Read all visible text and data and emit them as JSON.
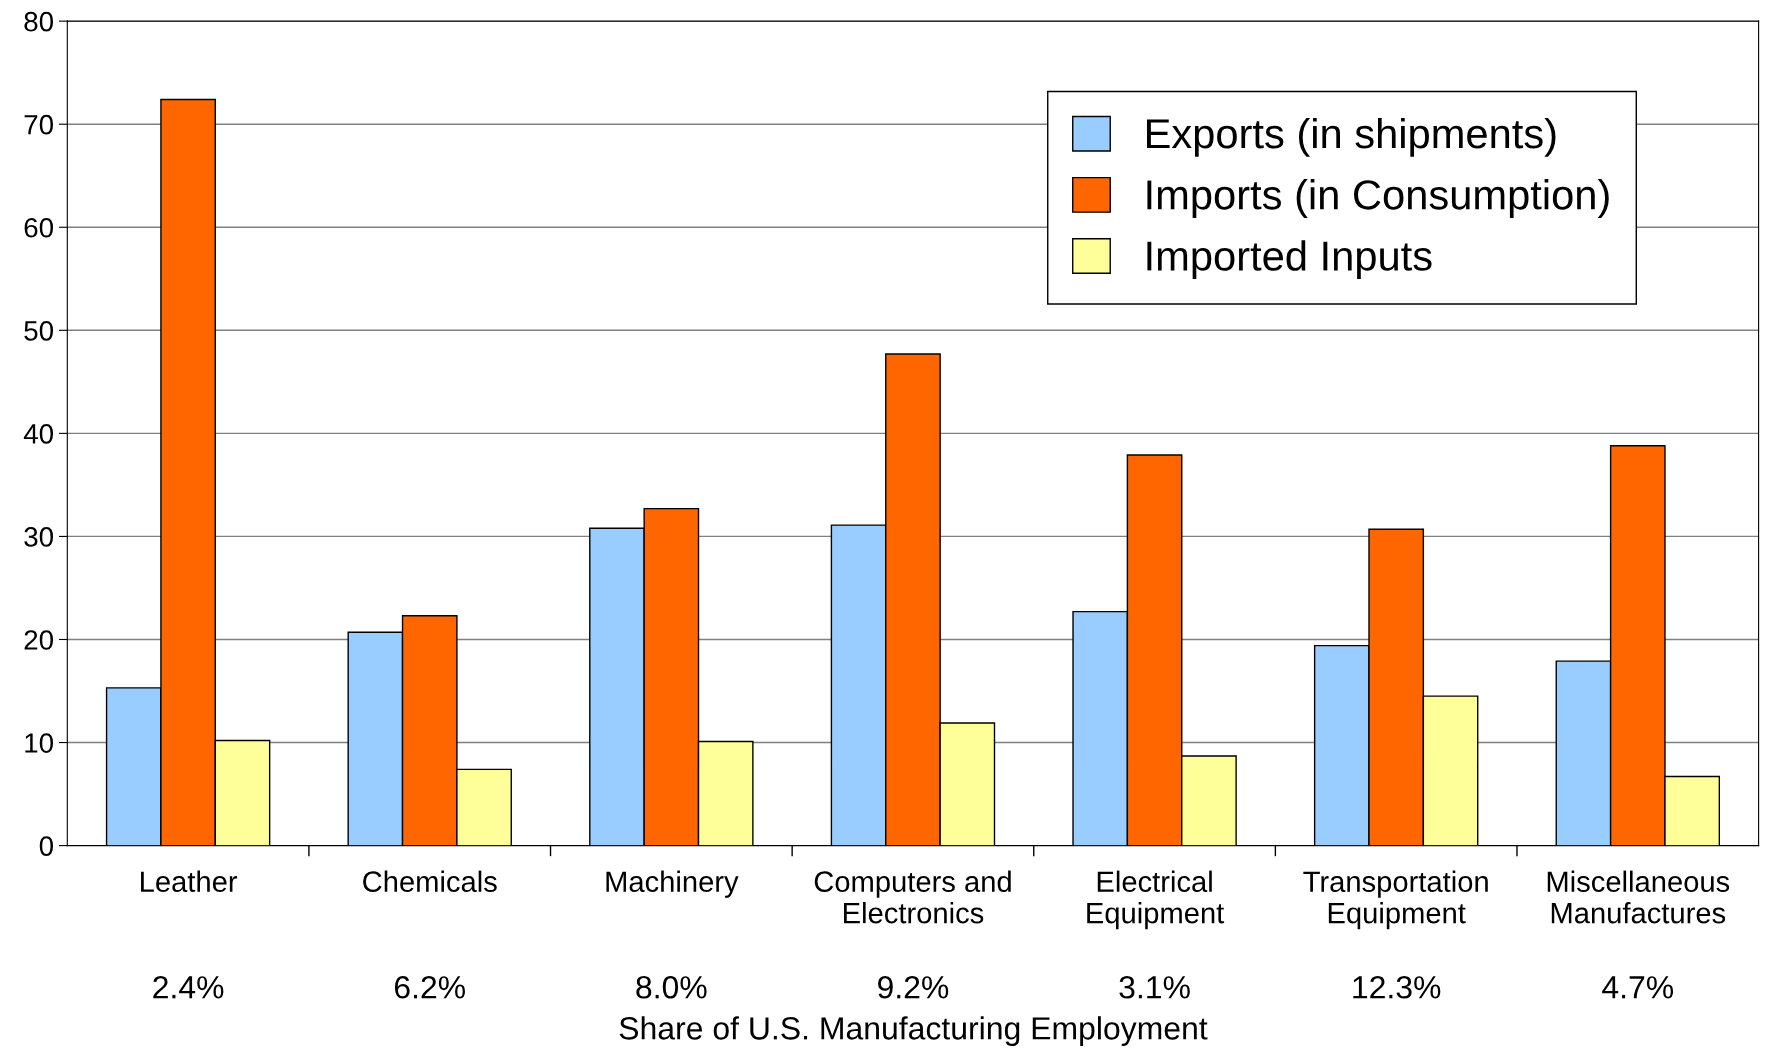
{
  "chart_data": {
    "type": "bar",
    "xlabel": "Share of U.S. Manufacturing Employment",
    "categories": [
      "Leather",
      "Chemicals",
      "Machinery",
      "Computers and\nElectronics",
      "Electrical\nEquipment",
      "Transportation\nEquipment",
      "Miscellaneous\nManufactures"
    ],
    "series": [
      {
        "name": "Exports (in shipments)",
        "color": "#99ccff",
        "values": [
          15.3,
          20.7,
          30.8,
          31.1,
          22.7,
          19.4,
          17.9
        ]
      },
      {
        "name": "Imports (in Consumption)",
        "color": "#ff6600",
        "values": [
          72.4,
          22.3,
          32.7,
          47.7,
          37.9,
          30.7,
          38.8
        ]
      },
      {
        "name": "Imported Inputs",
        "color": "#ffff99",
        "values": [
          10.2,
          7.4,
          10.1,
          11.9,
          8.7,
          14.5,
          6.7
        ]
      }
    ],
    "annotations": [
      "2.4%",
      "6.2%",
      "8.0%",
      "9.2%",
      "3.1%",
      "12.3%",
      "4.7%"
    ],
    "ylim": [
      0,
      80
    ],
    "yticks": [
      0,
      10,
      20,
      30,
      40,
      50,
      60,
      70,
      80
    ],
    "grid": "y",
    "legend": "top right"
  }
}
